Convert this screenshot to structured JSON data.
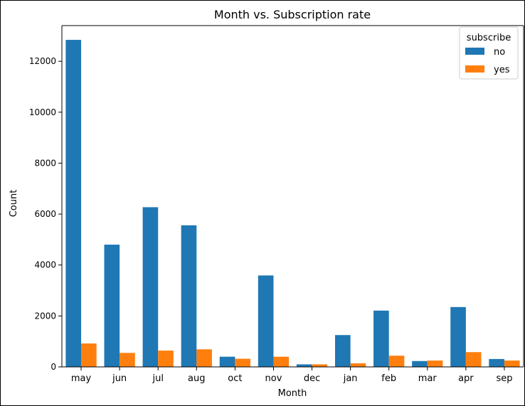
{
  "chart_data": {
    "type": "bar",
    "title": "Month vs. Subscription rate",
    "xlabel": "Month",
    "ylabel": "Count",
    "ylim": [
      0,
      13400
    ],
    "yticks": [
      0,
      2000,
      4000,
      6000,
      8000,
      10000,
      12000
    ],
    "categories": [
      "may",
      "jun",
      "jul",
      "aug",
      "oct",
      "nov",
      "dec",
      "jan",
      "feb",
      "mar",
      "apr",
      "sep"
    ],
    "series": [
      {
        "name": "no",
        "color": "#1f77b4",
        "values": [
          12840,
          4800,
          6270,
          5560,
          400,
          3590,
          100,
          1250,
          2210,
          230,
          2350,
          310
        ]
      },
      {
        "name": "yes",
        "color": "#ff7f0e",
        "values": [
          920,
          550,
          640,
          690,
          320,
          400,
          100,
          140,
          440,
          250,
          580,
          250
        ]
      }
    ],
    "legend": {
      "title": "subscribe",
      "position": "top-right"
    },
    "grid": false
  }
}
